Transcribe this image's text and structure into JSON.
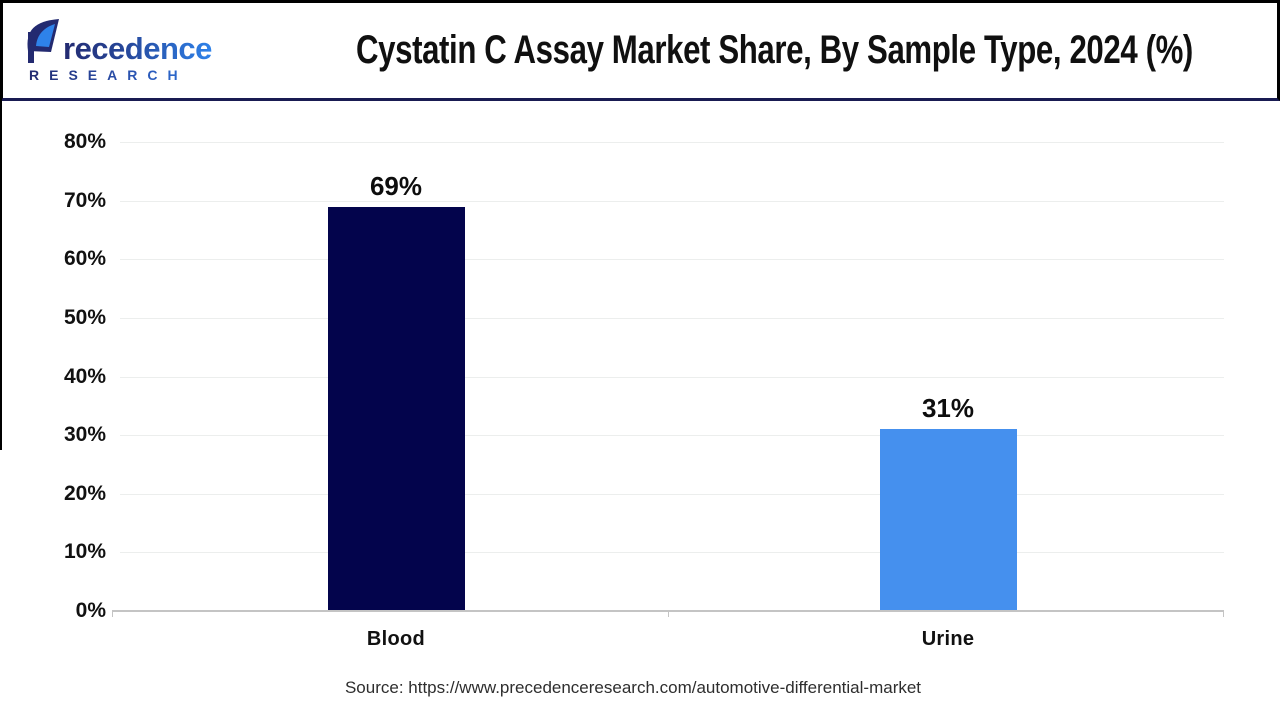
{
  "header": {
    "brand": {
      "wordmark": "Precedence",
      "wordmark_tail": "recedence",
      "subtitle": "RESEARCH"
    },
    "title": "Cystatin C Assay Market Share, By Sample Type, 2024 (%)"
  },
  "chart_data": {
    "type": "bar",
    "title": "Cystatin C Assay Market Share, By Sample Type, 2024 (%)",
    "categories": [
      "Blood",
      "Urine"
    ],
    "values": [
      69,
      31
    ],
    "value_labels": [
      "69%",
      "31%"
    ],
    "bar_colors": [
      "#03044c",
      "#4590ee"
    ],
    "xlabel": "",
    "ylabel": "",
    "ylim": [
      0,
      80
    ],
    "yticks": [
      0,
      10,
      20,
      30,
      40,
      50,
      60,
      70,
      80
    ],
    "ytick_labels": [
      "0%",
      "10%",
      "20%",
      "30%",
      "40%",
      "50%",
      "60%",
      "70%",
      "80%"
    ],
    "grid": "horizontal",
    "legend": "none"
  },
  "footer": {
    "source": "Source: https://www.precedenceresearch.com/automotive-differential-market"
  },
  "colors": {
    "brand_navy": "#232a70",
    "brand_blue": "#2e82ea",
    "header_divider": "#191b52",
    "axis": "#c4c4c4",
    "gridline": "#eceeed"
  }
}
